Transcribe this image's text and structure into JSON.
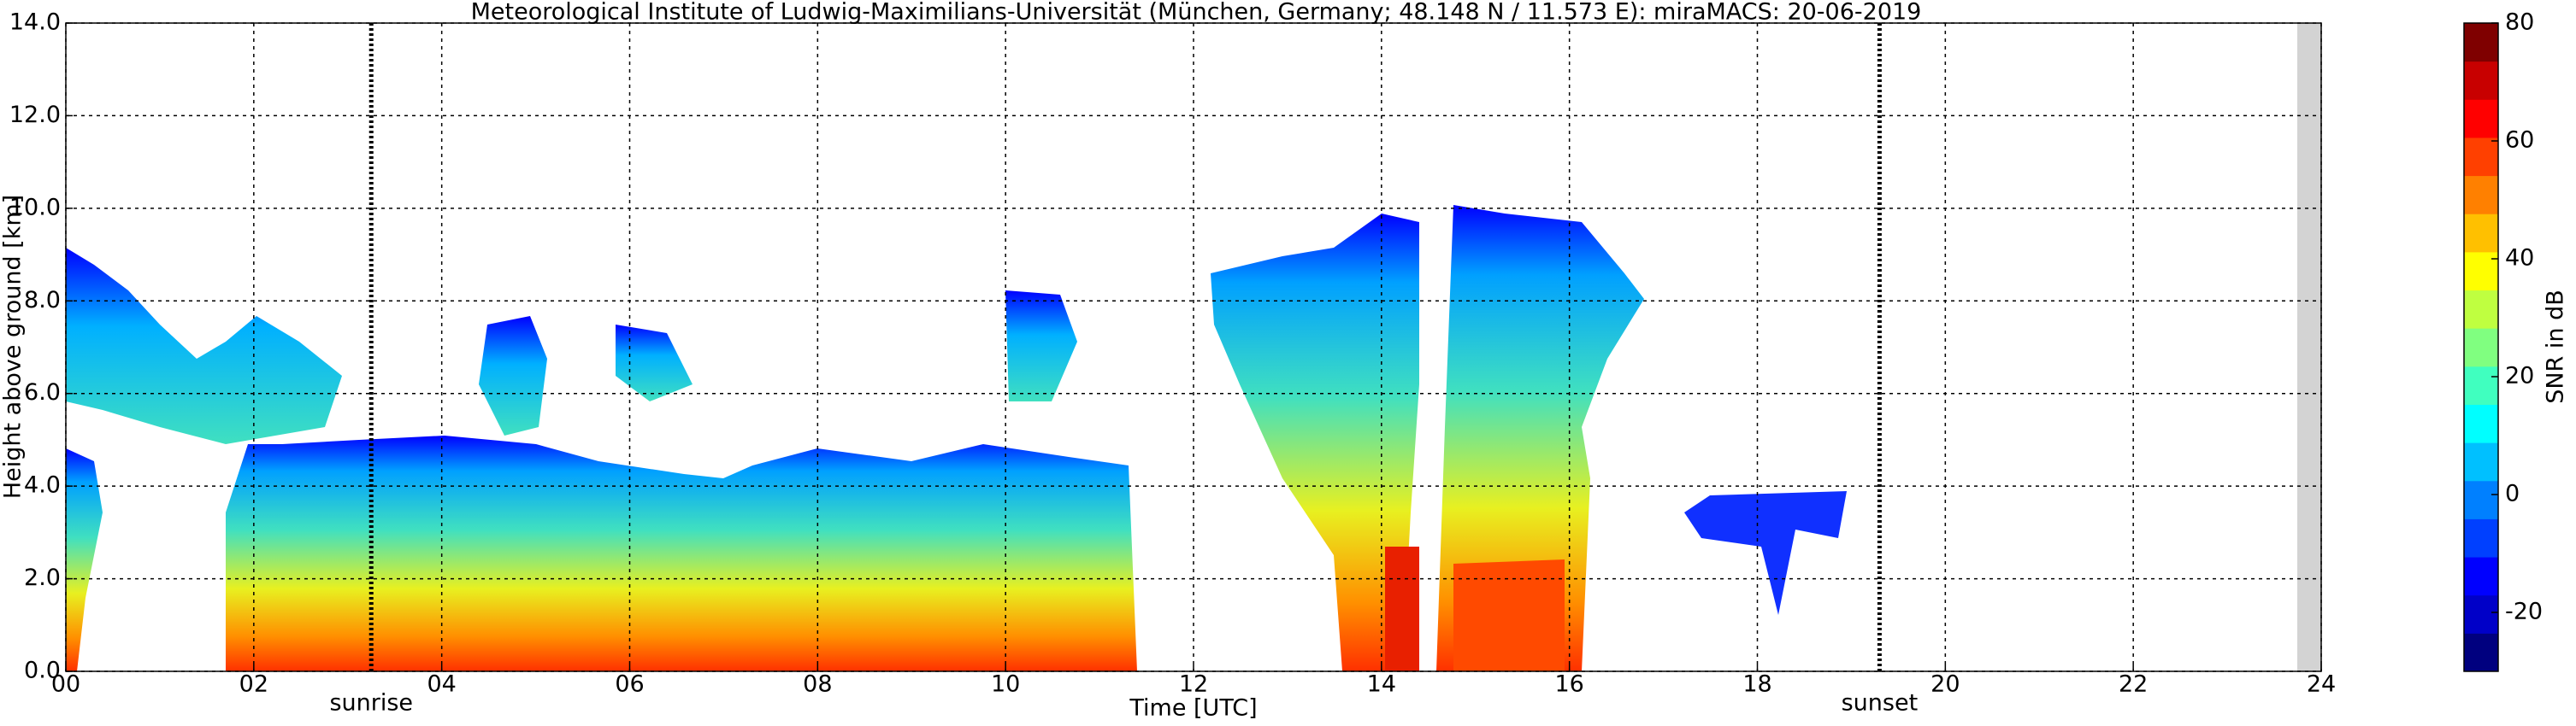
{
  "chart_data": {
    "type": "heatmap",
    "title": "Meteorological Institute of Ludwig-Maximilians-Universität (München, Germany; 48.148 N / 11.573 E):    miraMACS: 20-06-2019",
    "x_label": "Time [UTC]",
    "y_label": "Height above ground [km]",
    "xlim": [
      0,
      24
    ],
    "xticks": [
      {
        "value": 0,
        "label": "00"
      },
      {
        "value": 2,
        "label": "02"
      },
      {
        "value": 4,
        "label": "04"
      },
      {
        "value": 6,
        "label": "06"
      },
      {
        "value": 8,
        "label": "08"
      },
      {
        "value": 10,
        "label": "10"
      },
      {
        "value": 12,
        "label": "12"
      },
      {
        "value": 14,
        "label": "14"
      },
      {
        "value": 16,
        "label": "16"
      },
      {
        "value": 18,
        "label": "18"
      },
      {
        "value": 20,
        "label": "20"
      },
      {
        "value": 22,
        "label": "22"
      },
      {
        "value": 24,
        "label": "24"
      }
    ],
    "ylim": [
      0,
      14
    ],
    "yticks": [
      {
        "value": 0,
        "label": "0.0"
      },
      {
        "value": 2,
        "label": "2.0"
      },
      {
        "value": 4,
        "label": "4.0"
      },
      {
        "value": 6,
        "label": "6.0"
      },
      {
        "value": 8,
        "label": "8.0"
      },
      {
        "value": 10,
        "label": "10.0"
      },
      {
        "value": 12,
        "label": "12.0"
      },
      {
        "value": 14,
        "label": "14.0"
      }
    ],
    "grid": true,
    "annotations": [
      {
        "text": "sunrise",
        "x": 3.25
      },
      {
        "text": "sunset",
        "x": 19.3
      }
    ],
    "colorbar": {
      "label": "SNR in dB",
      "lim": [
        -30,
        80
      ],
      "ticks": [
        -20,
        0,
        20,
        40,
        60,
        80
      ],
      "colors": [
        "#00007f",
        "#0000c8",
        "#0000ff",
        "#0040ff",
        "#0080ff",
        "#00c0ff",
        "#00ffff",
        "#40ffbf",
        "#80ff80",
        "#bfff40",
        "#ffff00",
        "#ffc000",
        "#ff8000",
        "#ff4000",
        "#ff0000",
        "#c80000",
        "#7f0000"
      ]
    }
  }
}
